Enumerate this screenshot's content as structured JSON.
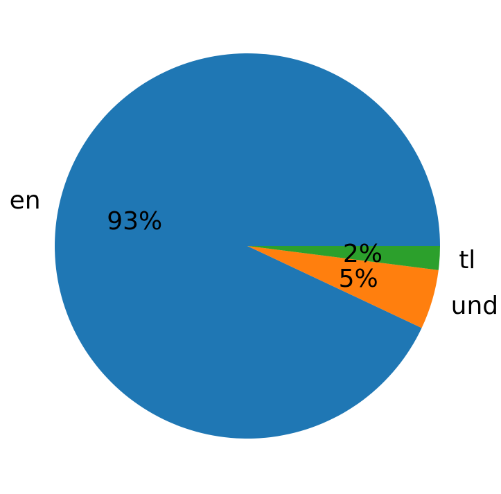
{
  "figure": {
    "background": "#ffffff",
    "text_color": "#000000"
  },
  "chart_data": {
    "type": "pie",
    "title": "",
    "slices": [
      {
        "label": "en",
        "value": 93,
        "pct_label": "93%",
        "color": "#1f77b4"
      },
      {
        "label": "und",
        "value": 5,
        "pct_label": "5%",
        "color": "#ff7f0e"
      },
      {
        "label": "tl",
        "value": 2,
        "pct_label": "2%",
        "color": "#2ca02c"
      }
    ],
    "start_angle_deg": 0,
    "direction": "counterclockwise",
    "label_distance": 1.1,
    "pct_distance": 0.6,
    "legend": "none",
    "grid": "off"
  }
}
